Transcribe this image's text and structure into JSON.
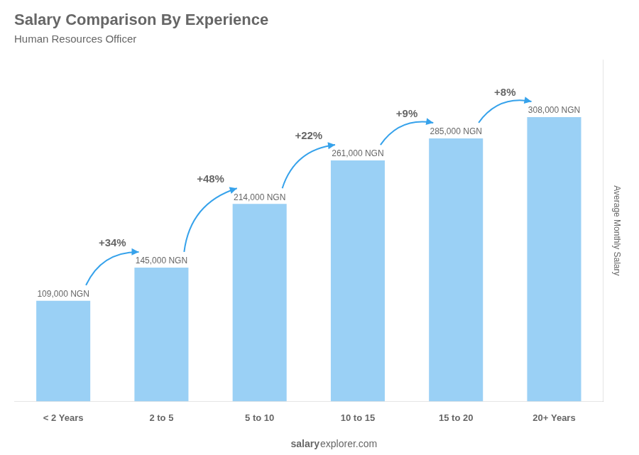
{
  "chart_data": {
    "type": "bar",
    "title": "Salary Comparison By Experience",
    "subtitle": "Human Resources Officer",
    "ylabel": "Average Monthly Salary",
    "categories": [
      "< 2 Years",
      "2 to 5",
      "5 to 10",
      "10 to 15",
      "15 to 20",
      "20+ Years"
    ],
    "values": [
      109000,
      145000,
      214000,
      261000,
      285000,
      308000
    ],
    "value_labels": [
      "109,000 NGN",
      "145,000 NGN",
      "214,000 NGN",
      "261,000 NGN",
      "285,000 NGN",
      "308,000 NGN"
    ],
    "data_labels": true,
    "annotations": [
      "+34%",
      "+48%",
      "+22%",
      "+9%",
      "+8%"
    ],
    "footer": [
      "salary",
      "explorer.com"
    ],
    "ylim": [
      0,
      370000
    ],
    "grid": false,
    "tick_labels": "x"
  }
}
